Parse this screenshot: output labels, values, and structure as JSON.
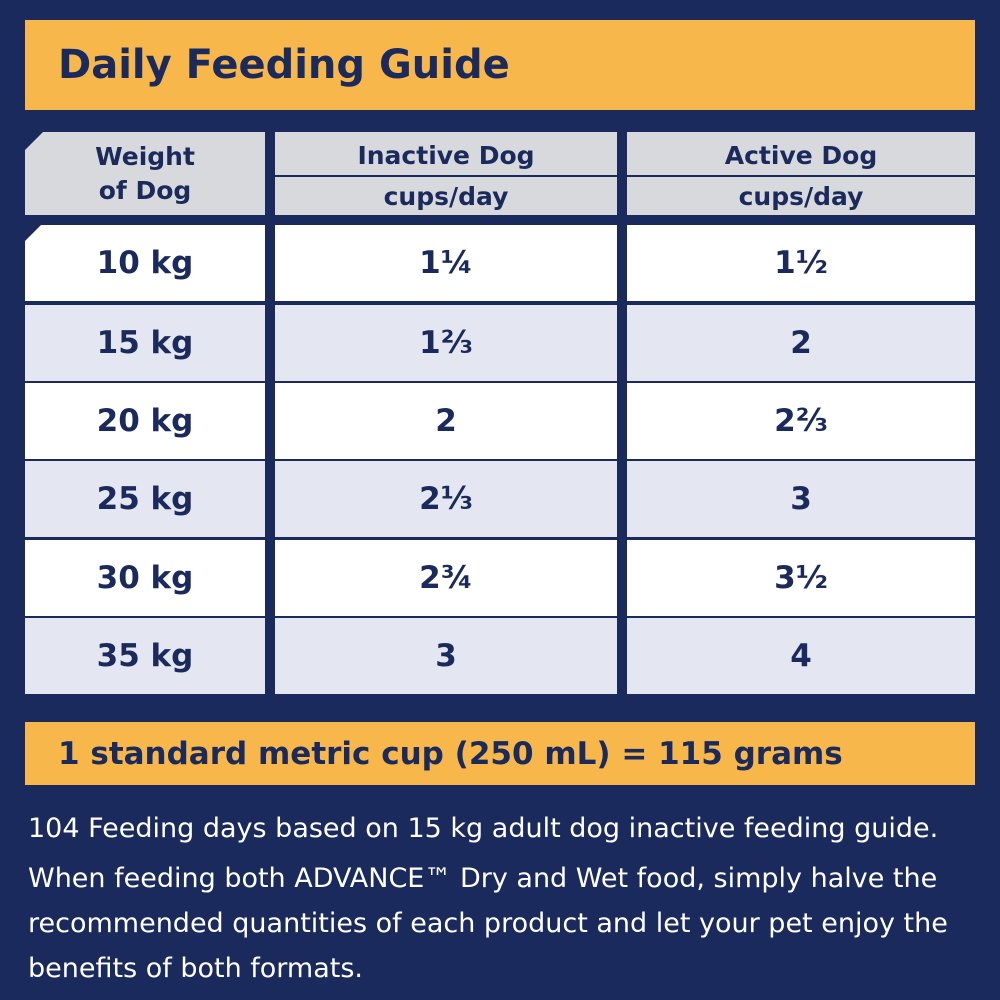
{
  "header": {
    "title": "Daily Feeding Guide"
  },
  "table": {
    "columns": [
      {
        "title": "Weight of Dog"
      },
      {
        "title": "Inactive Dog",
        "unit": "cups/day"
      },
      {
        "title": "Active Dog",
        "unit": "cups/day"
      }
    ],
    "rows": [
      [
        "10 kg",
        "1¼",
        "1½"
      ],
      [
        "15 kg",
        "1⅔",
        "2"
      ],
      [
        "20 kg",
        "2",
        "2⅔"
      ],
      [
        "25 kg",
        "2⅓",
        "3"
      ],
      [
        "30 kg",
        "2¾",
        "3½"
      ],
      [
        "35 kg",
        "3",
        "4"
      ]
    ]
  },
  "conversion": "1 standard metric cup (250 mL) = 115 grams",
  "notes": [
    "104 Feeding days based on 15 kg adult dog inactive feeding guide.",
    "When feeding both ADVANCE™ Dry and Wet food, simply halve the recommended quantities of each product and let your pet enjoy the benefits of both formats."
  ]
}
